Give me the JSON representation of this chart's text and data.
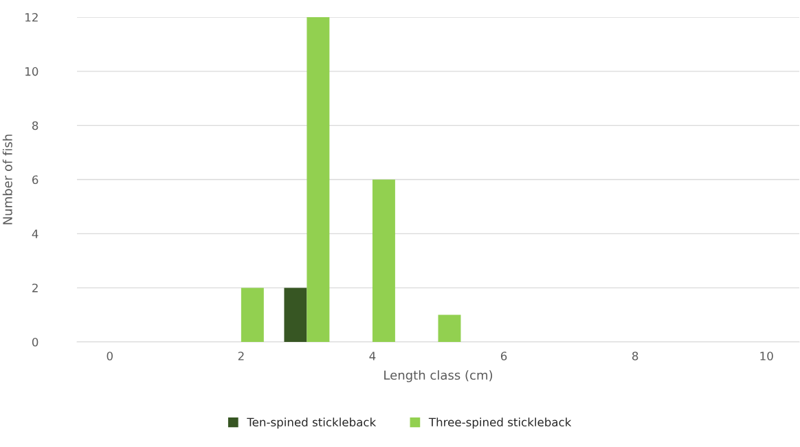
{
  "chart_data": {
    "type": "bar",
    "xlabel": "Length class (cm)",
    "ylabel": "Number of fish",
    "categories": [
      "0",
      null,
      "2",
      null,
      "4",
      null,
      "6",
      null,
      "8",
      null,
      "10"
    ],
    "series": [
      {
        "name": "Ten-spined stickleback",
        "color": "#375623",
        "values": [
          0,
          0,
          0,
          2,
          0,
          0,
          0,
          0,
          0,
          0,
          0
        ]
      },
      {
        "name": "Three-spined stickleback",
        "color": "#92d050",
        "values": [
          0,
          0,
          2,
          12,
          6,
          1,
          0,
          0,
          0,
          0,
          0
        ]
      }
    ],
    "ylim": [
      0,
      12
    ],
    "yticks": [
      0,
      2,
      4,
      6,
      8,
      10,
      12
    ],
    "grid": "y",
    "legend": "bottom"
  }
}
